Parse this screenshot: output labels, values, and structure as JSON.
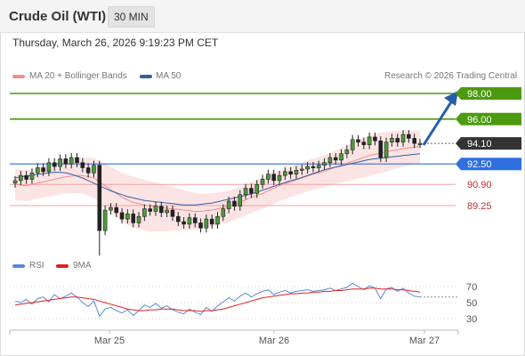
{
  "header": {
    "title": "Crude Oil (WTI)",
    "timeframe": "30 MIN"
  },
  "datetime": "Thursday, March 26, 2026 9:19:23 PM CET",
  "legend": {
    "ma20": "MA 20 + Bollinger Bands",
    "ma50": "MA 50",
    "source": "Research © 2026 Trading Central",
    "rsi": "RSI",
    "ma9": "9MA"
  },
  "colors": {
    "ma20": "#f28e8e",
    "ma50": "#2f5fa8",
    "resistance": "#4c9a0f",
    "support_blue": "#2f6fe0",
    "support_red": "#e06666",
    "price_tag": "#333333",
    "rsi": "#5b8ad6",
    "rsi_ma": "#dd2222"
  },
  "price_levels": [
    {
      "value": 98.0,
      "label": "98.00",
      "kind": "resistance"
    },
    {
      "value": 96.0,
      "label": "96.00",
      "kind": "resistance"
    },
    {
      "value": 94.1,
      "label": "94.10",
      "kind": "current"
    },
    {
      "value": 92.5,
      "label": "92.50",
      "kind": "pivot"
    },
    {
      "value": 90.9,
      "label": "90.90",
      "kind": "support"
    },
    {
      "value": 89.25,
      "label": "89.25",
      "kind": "support"
    }
  ],
  "rsi_levels": [
    "70",
    "50",
    "30"
  ],
  "x_axis": [
    "Mar 25",
    "Mar 26",
    "Mar 27"
  ],
  "chart_data": {
    "type": "candlestick",
    "timeframe": "30 MIN",
    "instrument": "Crude Oil (WTI)",
    "ylim": [
      84.4,
      98.6
    ],
    "close": [
      91.2,
      91.6,
      91.3,
      91.8,
      92.2,
      91.9,
      92.6,
      92.3,
      92.9,
      92.5,
      93.0,
      92.6,
      92.2,
      91.8,
      92.4,
      87.3,
      88.9,
      89.1,
      88.7,
      88.2,
      88.6,
      87.9,
      88.4,
      89.0,
      88.8,
      89.2,
      88.7,
      88.9,
      88.4,
      88.0,
      87.8,
      88.3,
      87.9,
      87.5,
      88.2,
      87.8,
      88.4,
      89.0,
      89.6,
      89.2,
      90.1,
      90.6,
      90.2,
      90.9,
      91.3,
      91.7,
      91.2,
      91.6,
      91.9,
      91.7,
      92.0,
      92.1,
      92.3,
      92.2,
      92.4,
      92.6,
      93.0,
      92.8,
      93.3,
      93.6,
      94.4,
      94.2,
      94.0,
      94.6,
      94.3,
      93.0,
      94.2,
      94.5,
      94.2,
      94.8,
      94.5,
      94.1,
      94.1
    ],
    "ma20": [
      90.9,
      90.85,
      90.8,
      90.9,
      91.0,
      91.1,
      91.2,
      91.3,
      91.4,
      91.5,
      91.55,
      91.6,
      91.6,
      91.5,
      91.4,
      91.1,
      90.8,
      90.5,
      90.2,
      89.9,
      89.7,
      89.5,
      89.4,
      89.3,
      89.2,
      89.15,
      89.1,
      89.05,
      89.0,
      88.95,
      88.9,
      88.85,
      88.8,
      88.8,
      88.85,
      88.9,
      89.0,
      89.1,
      89.2,
      89.35,
      89.5,
      89.7,
      89.9,
      90.05,
      90.2,
      90.4,
      90.6,
      90.8,
      90.95,
      91.1,
      91.25,
      91.4,
      91.55,
      91.7,
      91.8,
      91.95,
      92.1,
      92.25,
      92.4,
      92.55,
      92.7,
      92.85,
      93.0,
      93.15,
      93.25,
      93.35,
      93.45,
      93.55,
      93.6,
      93.7,
      93.75,
      93.8,
      93.85
    ],
    "ma50": [
      91.4,
      91.5,
      91.55,
      91.6,
      91.7,
      91.75,
      91.8,
      91.85,
      91.85,
      91.8,
      91.7,
      91.55,
      91.4,
      91.2,
      91.0,
      90.8,
      90.6,
      90.4,
      90.25,
      90.1,
      89.95,
      89.85,
      89.75,
      89.65,
      89.6,
      89.55,
      89.5,
      89.45,
      89.4,
      89.35,
      89.3,
      89.3,
      89.3,
      89.35,
      89.4,
      89.45,
      89.55,
      89.65,
      89.75,
      89.85,
      89.95,
      90.05,
      90.15,
      90.3,
      90.45,
      90.6,
      90.75,
      90.9,
      91.05,
      91.2,
      91.3,
      91.45,
      91.6,
      91.75,
      91.9,
      92.05,
      92.15,
      92.25,
      92.35,
      92.45,
      92.55,
      92.65,
      92.75,
      92.85,
      92.9,
      92.95,
      93.0,
      93.05,
      93.1,
      93.15,
      93.2,
      93.25,
      93.3
    ],
    "rsi": [
      52,
      50,
      54,
      48,
      55,
      57,
      51,
      60,
      55,
      58,
      62,
      57,
      50,
      45,
      52,
      33,
      42,
      44,
      40,
      37,
      41,
      34,
      40,
      47,
      44,
      49,
      43,
      46,
      41,
      38,
      36,
      42,
      38,
      35,
      44,
      39,
      46,
      51,
      56,
      52,
      58,
      62,
      57,
      61,
      64,
      66,
      60,
      63,
      65,
      62,
      64,
      65,
      66,
      64,
      65,
      66,
      68,
      65,
      67,
      69,
      74,
      70,
      66,
      71,
      68,
      55,
      67,
      69,
      64,
      68,
      62,
      58,
      57
    ],
    "rsi_ma": [
      47,
      48,
      49,
      50,
      51,
      52,
      53,
      54,
      55,
      56,
      57,
      57,
      56,
      55,
      54,
      52,
      50,
      48,
      46,
      44,
      42,
      41,
      40,
      40,
      41,
      41,
      42,
      42,
      42,
      41,
      40,
      40,
      40,
      39,
      40,
      40,
      41,
      42,
      44,
      46,
      48,
      50,
      52,
      54,
      56,
      57,
      58,
      59,
      60,
      61,
      61,
      62,
      62,
      63,
      63,
      64,
      64,
      65,
      65,
      66,
      67,
      67,
      67,
      68,
      68,
      67,
      67,
      67,
      66,
      66,
      65,
      64,
      63
    ],
    "rsi_levels": [
      70,
      50,
      30
    ],
    "xlabel": "",
    "ylabel": ""
  }
}
